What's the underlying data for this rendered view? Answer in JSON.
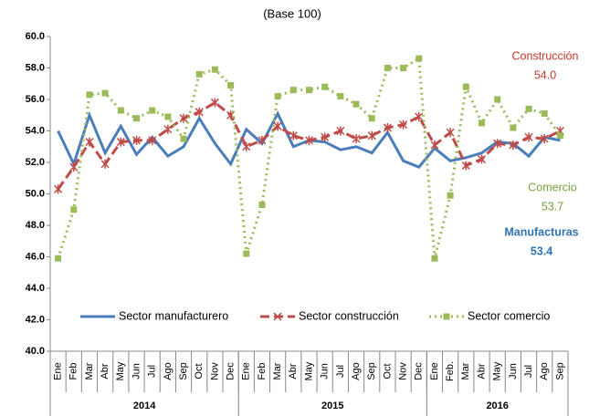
{
  "chart_data": {
    "type": "line",
    "title": "(Base 100)",
    "category_groups": [
      {
        "name": "2014",
        "categories": [
          "Ene",
          "Feb",
          "Mar",
          "Abr",
          "May",
          "Jun",
          "Jul",
          "Ago",
          "Sep",
          "Oct",
          "Nov",
          "Dec"
        ]
      },
      {
        "name": "2015",
        "categories": [
          "Ene",
          "Feb",
          "Mar",
          "Abr",
          "May",
          "Jun",
          "Jul",
          "Ago",
          "Sep",
          "Oct",
          "Nov",
          "Dec"
        ]
      },
      {
        "name": "2016",
        "categories": [
          "Ene",
          "Feb.",
          "Mar",
          "Abr",
          "May",
          "Jun",
          "Jul",
          "Ago",
          "Sep"
        ]
      }
    ],
    "series": [
      {
        "name": "Sector manufacturero",
        "color": "#4a7ebb",
        "dash": "solid",
        "marker": "none",
        "values": [
          54.0,
          51.9,
          55.0,
          52.6,
          54.3,
          52.5,
          53.6,
          52.4,
          53.0,
          54.8,
          53.2,
          51.9,
          54.1,
          53.2,
          55.1,
          53.0,
          53.4,
          53.3,
          52.8,
          53.0,
          52.6,
          53.9,
          52.1,
          51.7,
          52.9,
          52.1,
          52.3,
          52.6,
          53.3,
          53.2,
          52.4,
          53.6,
          53.4
        ]
      },
      {
        "name": "Sector construcción",
        "color": "#be4b48",
        "dash": "dashed",
        "marker": "star",
        "values": [
          50.3,
          51.7,
          53.3,
          51.9,
          53.3,
          53.4,
          53.4,
          54.1,
          54.8,
          55.2,
          55.8,
          55.0,
          53.0,
          53.4,
          54.3,
          53.7,
          53.4,
          53.6,
          54.0,
          53.5,
          53.7,
          54.2,
          54.4,
          54.9,
          53.1,
          53.9,
          51.8,
          52.2,
          53.2,
          53.1,
          53.6,
          53.5,
          54.0
        ]
      },
      {
        "name": "Sector comercio",
        "color": "#9bbb59",
        "dash": "dotted",
        "marker": "square",
        "values": [
          45.9,
          49.0,
          56.3,
          56.4,
          55.3,
          54.8,
          55.3,
          54.9,
          53.5,
          57.6,
          57.9,
          56.9,
          46.2,
          49.3,
          56.2,
          56.6,
          56.6,
          56.8,
          56.2,
          55.7,
          54.8,
          58.0,
          58.0,
          58.6,
          45.9,
          49.9,
          56.8,
          54.5,
          56.0,
          54.2,
          55.4,
          55.1,
          53.7
        ]
      }
    ],
    "ylim": [
      40,
      60
    ],
    "yticks": [
      {
        "value": 40,
        "label": "40.0"
      },
      {
        "value": 42,
        "label": "42.0"
      },
      {
        "value": 44,
        "label": "44.0"
      },
      {
        "value": 46,
        "label": "46.0"
      },
      {
        "value": 48,
        "label": "48.0"
      },
      {
        "value": 50,
        "label": "50.0"
      },
      {
        "value": 52,
        "label": "52.0"
      },
      {
        "value": 54,
        "label": "54.0"
      },
      {
        "value": 56,
        "label": "56.0"
      },
      {
        "value": 58,
        "label": "58.0"
      },
      {
        "value": 60,
        "label": "60.0"
      }
    ],
    "grid": false,
    "legend": "bottom",
    "annotations": [
      {
        "lines": [
          "Construcción",
          "54.0"
        ],
        "color": "#c0392b"
      },
      {
        "lines": [
          "Comercio",
          "53.7"
        ],
        "color": "#77a33b"
      },
      {
        "lines": [
          "Manufacturas",
          "53.4"
        ],
        "color": "#2e75b6"
      }
    ]
  }
}
